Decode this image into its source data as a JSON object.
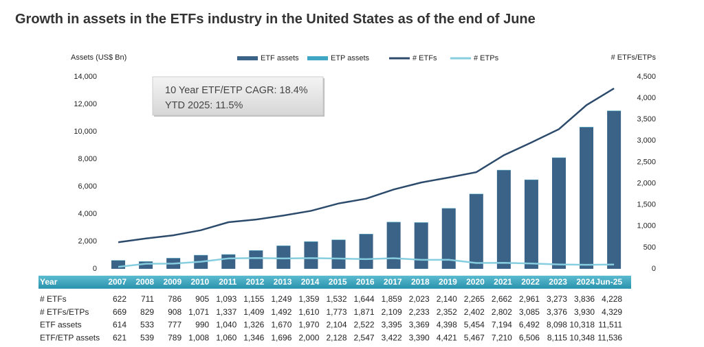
{
  "chart_data": {
    "type": "bar",
    "title": "Growth in assets in the ETFs industry in the United States as of the end of June",
    "y_label": "Assets (US$ Bn)",
    "y2_label": "# ETFs/ETPs",
    "annotations": [
      "10 Year ETF/ETP CAGR: 18.4%",
      "YTD 2025: 11.5%"
    ],
    "categories": [
      "2007",
      "2008",
      "2009",
      "2010",
      "2011",
      "2012",
      "2013",
      "2014",
      "2015",
      "2016",
      "2017",
      "2018",
      "2019",
      "2020",
      "2021",
      "2022",
      "2023",
      "2024",
      "Jun-25"
    ],
    "series": [
      {
        "name": "ETF assets",
        "type": "bar",
        "color": "#3a6387",
        "values": [
          614,
          533,
          777,
          990,
          1040,
          1326,
          1670,
          1970,
          2104,
          2522,
          3395,
          3369,
          4398,
          5454,
          7194,
          6492,
          8098,
          10318,
          11511
        ]
      },
      {
        "name": "ETP assets",
        "type": "bar",
        "stacked": true,
        "color": "#3fa6c4",
        "values": [
          7,
          6,
          12,
          18,
          20,
          20,
          26,
          30,
          24,
          25,
          27,
          21,
          23,
          13,
          16,
          14,
          17,
          30,
          25
        ]
      },
      {
        "name": "# ETFs",
        "type": "line",
        "axis": "y2",
        "color": "#2c4a6b",
        "values": [
          622,
          711,
          786,
          905,
          1093,
          1155,
          1249,
          1359,
          1532,
          1644,
          1859,
          2023,
          2140,
          2265,
          2662,
          2961,
          3273,
          3836,
          4228
        ]
      },
      {
        "name": "# ETPs",
        "type": "line",
        "axis": "y2",
        "color": "#86cde0",
        "values": [
          47,
          118,
          122,
          166,
          244,
          254,
          243,
          251,
          241,
          227,
          250,
          210,
          212,
          137,
          140,
          124,
          103,
          94,
          101
        ]
      }
    ],
    "ylim": [
      0,
      14000
    ],
    "yticks": [
      0,
      {
        "value": 2000,
        "label": "2,000"
      },
      {
        "value": 4000,
        "label": "4,000"
      },
      {
        "value": 6000,
        "label": "6,000"
      },
      {
        "value": 8000,
        "label": "8,000"
      },
      {
        "value": 10000,
        "label": "10,000"
      },
      {
        "value": 12000,
        "label": "12,000"
      },
      {
        "value": 14000,
        "label": "14,000"
      }
    ],
    "y2lim": [
      0,
      4500
    ],
    "y2ticks": [
      0,
      500,
      {
        "value": 1000,
        "label": "1,000"
      },
      {
        "value": 1500,
        "label": "1,500"
      },
      {
        "value": 2000,
        "label": "2,000"
      },
      {
        "value": 2500,
        "label": "2,500"
      },
      {
        "value": 3000,
        "label": "3,000"
      },
      {
        "value": 3500,
        "label": "3,500"
      },
      {
        "value": 4000,
        "label": "4,000"
      },
      {
        "value": 4500,
        "label": "4,500"
      }
    ],
    "grid": false,
    "legend": "top"
  },
  "table": {
    "header": "Year",
    "rows": [
      {
        "label": "# ETFs",
        "cells": [
          "622",
          "711",
          "786",
          "905",
          "1,093",
          "1,155",
          "1,249",
          "1,359",
          "1,532",
          "1,644",
          "1,859",
          "2,023",
          "2,140",
          "2,265",
          "2,662",
          "2,961",
          "3,273",
          "3,836",
          "4,228"
        ]
      },
      {
        "label": "# ETFs/ETPs",
        "cells": [
          "669",
          "829",
          "908",
          "1,071",
          "1,337",
          "1,409",
          "1,492",
          "1,610",
          "1,773",
          "1,871",
          "2,109",
          "2,233",
          "2,352",
          "2,402",
          "2,802",
          "3,085",
          "3,376",
          "3,930",
          "4,329"
        ]
      },
      {
        "label": "ETF assets",
        "cells": [
          "614",
          "533",
          "777",
          "990",
          "1,040",
          "1,326",
          "1,670",
          "1,970",
          "2,104",
          "2,522",
          "3,395",
          "3,369",
          "4,398",
          "5,454",
          "7,194",
          "6,492",
          "8,098",
          "10,318",
          "11,511"
        ]
      },
      {
        "label": "ETF/ETP assets",
        "cells": [
          "621",
          "539",
          "789",
          "1,008",
          "1,060",
          "1,346",
          "1,696",
          "2,000",
          "2,128",
          "2,547",
          "3,422",
          "3,390",
          "4,421",
          "5,467",
          "7,210",
          "6,506",
          "8,115",
          "10,348",
          "11,536"
        ]
      }
    ]
  }
}
